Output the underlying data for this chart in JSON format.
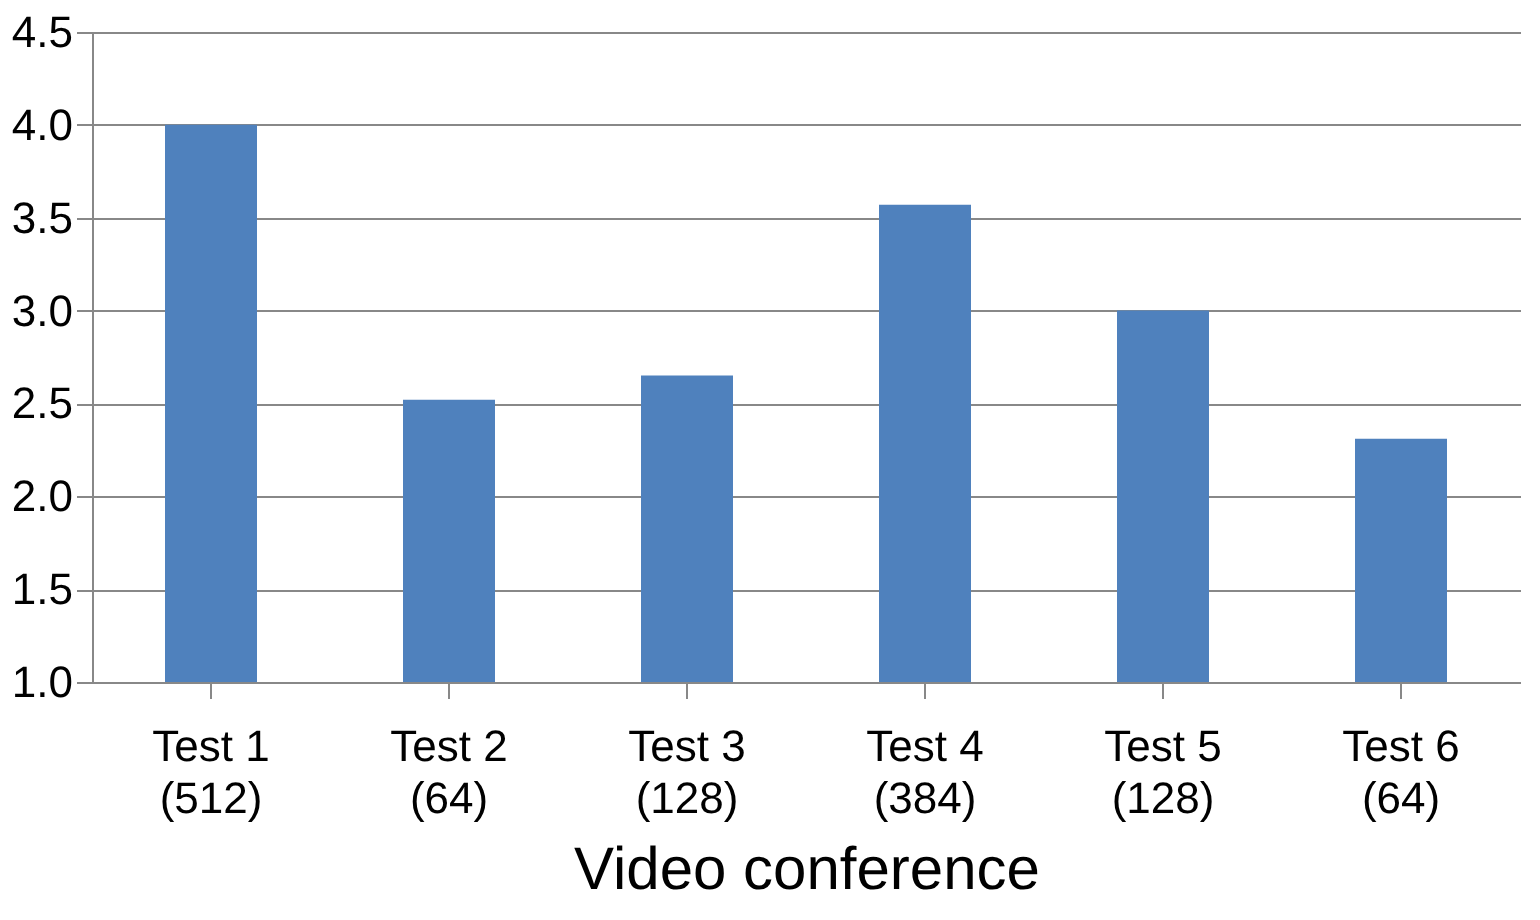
{
  "chart_data": {
    "type": "bar",
    "xlabel": "Video conference",
    "categories": [
      "Test 1\n(512)",
      "Test 2\n(64)",
      "Test 3\n(128)",
      "Test 4\n(384)",
      "Test 5\n(128)",
      "Test 6\n(64)"
    ],
    "values": [
      4.0,
      2.52,
      2.65,
      3.57,
      3.0,
      2.31
    ],
    "color": "#4f81bd",
    "ylim": [
      1.0,
      4.5
    ],
    "yticks": [
      {
        "value": 1.0,
        "label": "1.0"
      },
      {
        "value": 1.5,
        "label": "1.5"
      },
      {
        "value": 2.0,
        "label": "2.0"
      },
      {
        "value": 2.5,
        "label": "2.5"
      },
      {
        "value": 3.0,
        "label": "3.0"
      },
      {
        "value": 3.5,
        "label": "3.5"
      },
      {
        "value": 4.0,
        "label": "4.0"
      },
      {
        "value": 4.5,
        "label": "4.5"
      }
    ],
    "grid": "y",
    "legend": false
  }
}
